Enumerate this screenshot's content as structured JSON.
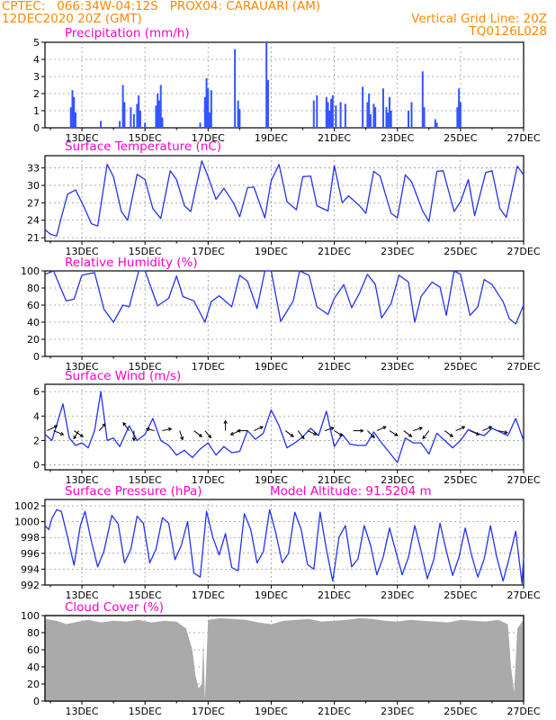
{
  "header": {
    "line1_left": "CPTEC:   066:34W-04:12S   PROX04: CARAUARI (AM)",
    "line2_left": "12DEC2020 20Z (GMT)",
    "line2_right": "Vertical Grid Line: 20Z",
    "line3_right": "TQ0126L028",
    "color": "#ff8800"
  },
  "chart_data": [
    {
      "type": "bar",
      "title": "Precipitation (mm/h)",
      "ylim": [
        0,
        5
      ],
      "yticks": [
        "0",
        "1",
        "2",
        "3",
        "4",
        "5"
      ],
      "x_labels": [
        "13DEC",
        "15DEC",
        "17DEC",
        "19DEC",
        "21DEC",
        "23DEC",
        "25DEC",
        "27DEC"
      ],
      "color": "#3355ff",
      "bars": [
        {
          "x": 12.65,
          "y": 1.2
        },
        {
          "x": 12.7,
          "y": 2.2
        },
        {
          "x": 12.75,
          "y": 1.8
        },
        {
          "x": 12.8,
          "y": 0.9
        },
        {
          "x": 13.6,
          "y": 0.4
        },
        {
          "x": 14.2,
          "y": 0.4
        },
        {
          "x": 14.3,
          "y": 2.5
        },
        {
          "x": 14.35,
          "y": 1.5
        },
        {
          "x": 14.55,
          "y": 1.2
        },
        {
          "x": 14.65,
          "y": 0.8
        },
        {
          "x": 14.75,
          "y": 1.4
        },
        {
          "x": 14.8,
          "y": 1.9
        },
        {
          "x": 14.85,
          "y": 1.0
        },
        {
          "x": 15.0,
          "y": 0.3
        },
        {
          "x": 15.35,
          "y": 1.3
        },
        {
          "x": 15.4,
          "y": 2.0
        },
        {
          "x": 15.45,
          "y": 1.6
        },
        {
          "x": 15.5,
          "y": 2.5
        },
        {
          "x": 15.55,
          "y": 0.6
        },
        {
          "x": 16.75,
          "y": 0.3
        },
        {
          "x": 16.9,
          "y": 1.8
        },
        {
          "x": 16.95,
          "y": 2.9
        },
        {
          "x": 17.0,
          "y": 2.3
        },
        {
          "x": 17.05,
          "y": 0.9
        },
        {
          "x": 17.1,
          "y": 2.2
        },
        {
          "x": 17.85,
          "y": 4.6
        },
        {
          "x": 17.95,
          "y": 1.6
        },
        {
          "x": 18.0,
          "y": 1.1
        },
        {
          "x": 18.85,
          "y": 5.0
        },
        {
          "x": 18.9,
          "y": 2.8
        },
        {
          "x": 20.35,
          "y": 1.6
        },
        {
          "x": 20.45,
          "y": 1.9
        },
        {
          "x": 20.75,
          "y": 1.8
        },
        {
          "x": 20.8,
          "y": 1.5
        },
        {
          "x": 20.85,
          "y": 1.0
        },
        {
          "x": 20.9,
          "y": 1.7
        },
        {
          "x": 20.95,
          "y": 1.9
        },
        {
          "x": 21.05,
          "y": 1.3
        },
        {
          "x": 21.2,
          "y": 1.5
        },
        {
          "x": 21.35,
          "y": 1.4
        },
        {
          "x": 21.9,
          "y": 2.4
        },
        {
          "x": 22.05,
          "y": 1.5
        },
        {
          "x": 22.1,
          "y": 2.0
        },
        {
          "x": 22.15,
          "y": 0.8
        },
        {
          "x": 22.25,
          "y": 1.4
        },
        {
          "x": 22.3,
          "y": 1.2
        },
        {
          "x": 22.55,
          "y": 2.3
        },
        {
          "x": 22.65,
          "y": 1.2
        },
        {
          "x": 22.7,
          "y": 0.9
        },
        {
          "x": 22.75,
          "y": 1.8
        },
        {
          "x": 22.8,
          "y": 1.0
        },
        {
          "x": 23.35,
          "y": 1.0
        },
        {
          "x": 23.45,
          "y": 1.5
        },
        {
          "x": 23.8,
          "y": 3.3
        },
        {
          "x": 23.85,
          "y": 1.2
        },
        {
          "x": 24.2,
          "y": 0.5
        },
        {
          "x": 24.25,
          "y": 0.3
        },
        {
          "x": 24.9,
          "y": 1.2
        },
        {
          "x": 24.95,
          "y": 2.3
        },
        {
          "x": 25.0,
          "y": 1.5
        }
      ]
    },
    {
      "type": "line",
      "title": "Surface Temperature (nC)",
      "ylim": [
        20.4,
        35.1
      ],
      "yticks": [
        "21",
        "24",
        "27",
        "30",
        "33"
      ],
      "x_labels": [
        "13DEC",
        "15DEC",
        "17DEC",
        "19DEC",
        "21DEC",
        "23DEC",
        "25DEC",
        "27DEC"
      ],
      "color": "#2233ee",
      "x": [
        11.83,
        12.0,
        12.2,
        12.35,
        12.55,
        12.8,
        13.05,
        13.3,
        13.5,
        13.8,
        14.0,
        14.25,
        14.45,
        14.75,
        15.0,
        15.25,
        15.5,
        15.8,
        16.0,
        16.25,
        16.45,
        16.8,
        17.0,
        17.25,
        17.5,
        17.8,
        18.0,
        18.25,
        18.45,
        18.8,
        19.0,
        19.25,
        19.5,
        19.8,
        20.0,
        20.25,
        20.45,
        20.8,
        21.0,
        21.25,
        21.45,
        21.8,
        22.0,
        22.25,
        22.45,
        22.8,
        23.0,
        23.25,
        23.45,
        23.8,
        24.0,
        24.25,
        24.45,
        24.8,
        25.0,
        25.25,
        25.45,
        25.8,
        26.0,
        26.25,
        26.45,
        26.8,
        27.0
      ],
      "y": [
        22.4,
        21.6,
        21.3,
        24.5,
        28.5,
        29.2,
        26.5,
        23.4,
        23.0,
        33.6,
        31.5,
        25.5,
        24.0,
        31.9,
        31.0,
        26.0,
        24.3,
        32.5,
        31.0,
        26.5,
        25.5,
        34.2,
        31.5,
        27.6,
        29.5,
        27.0,
        24.6,
        29.6,
        29.7,
        24.4,
        30.8,
        33.6,
        27.2,
        25.8,
        31.5,
        31.6,
        26.5,
        25.6,
        33.4,
        27.0,
        28.2,
        26.5,
        25.2,
        32.4,
        31.6,
        25.2,
        24.4,
        31.8,
        30.6,
        25.6,
        23.8,
        32.4,
        32.5,
        25.5,
        27.2,
        31.0,
        24.8,
        32.2,
        32.5,
        26.0,
        24.5,
        33.3,
        31.8
      ]
    },
    {
      "type": "line",
      "title": "Relative Humidity (%)",
      "ylim": [
        0,
        100
      ],
      "yticks": [
        "0",
        "20",
        "40",
        "60",
        "80",
        "100"
      ],
      "x_labels": [
        "13DEC",
        "15DEC",
        "17DEC",
        "19DEC",
        "21DEC",
        "23DEC",
        "25DEC",
        "27DEC"
      ],
      "color": "#2233ee",
      "x": [
        11.83,
        12.1,
        12.5,
        12.75,
        13.0,
        13.4,
        13.7,
        14.0,
        14.3,
        14.5,
        14.8,
        15.0,
        15.4,
        15.75,
        16.0,
        16.2,
        16.55,
        16.9,
        17.1,
        17.35,
        17.75,
        18.0,
        18.25,
        18.55,
        18.8,
        19.0,
        19.3,
        19.7,
        19.9,
        20.2,
        20.45,
        20.8,
        21.0,
        21.3,
        21.55,
        21.8,
        22.05,
        22.3,
        22.5,
        22.8,
        23.05,
        23.35,
        23.55,
        23.75,
        24.1,
        24.35,
        24.55,
        24.8,
        25.0,
        25.3,
        25.55,
        25.75,
        26.0,
        26.35,
        26.55,
        26.75,
        27.0
      ],
      "y": [
        96,
        100,
        65,
        67,
        95,
        98,
        55,
        40,
        60,
        58,
        100,
        100,
        59,
        68,
        94,
        70,
        65,
        40,
        64,
        71,
        58,
        95,
        88,
        56,
        100,
        100,
        41,
        65,
        100,
        95,
        58,
        49,
        68,
        84,
        57,
        74,
        96,
        84,
        45,
        62,
        95,
        87,
        40,
        70,
        87,
        81,
        48,
        100,
        96,
        48,
        58,
        90,
        84,
        64,
        44,
        38,
        60
      ]
    },
    {
      "type": "line",
      "title": "Surface Wind (m/s)",
      "ylim": [
        -0.4,
        6.6
      ],
      "yticks": [
        "0",
        "2",
        "4",
        "6"
      ],
      "x_labels": [
        "13DEC",
        "15DEC",
        "17DEC",
        "19DEC",
        "21DEC",
        "23DEC",
        "25DEC",
        "27DEC"
      ],
      "color": "#2233ee",
      "x": [
        11.83,
        12.05,
        12.25,
        12.4,
        12.6,
        12.8,
        13.0,
        13.2,
        13.4,
        13.6,
        13.8,
        14.0,
        14.2,
        14.5,
        14.75,
        15.0,
        15.25,
        15.5,
        15.75,
        16.0,
        16.25,
        16.5,
        16.75,
        17.0,
        17.25,
        17.5,
        17.75,
        18.0,
        18.25,
        18.5,
        18.75,
        19.0,
        19.25,
        19.5,
        19.75,
        20.0,
        20.25,
        20.5,
        20.75,
        21.0,
        21.25,
        21.5,
        21.75,
        22.0,
        22.25,
        22.5,
        22.75,
        23.0,
        23.25,
        23.5,
        23.75,
        24.0,
        24.25,
        24.5,
        24.75,
        25.0,
        25.25,
        25.5,
        25.75,
        26.0,
        26.25,
        26.5,
        26.75,
        27.0
      ],
      "y": [
        2.5,
        2.0,
        3.7,
        5.0,
        2.2,
        1.6,
        1.8,
        1.4,
        2.8,
        6.0,
        2.0,
        2.2,
        1.5,
        3.2,
        2.0,
        2.5,
        3.8,
        2.0,
        1.6,
        0.8,
        1.2,
        0.6,
        1.3,
        1.8,
        0.8,
        1.5,
        1.0,
        1.1,
        2.8,
        2.1,
        2.6,
        4.5,
        3.2,
        1.4,
        1.8,
        2.3,
        3.0,
        2.4,
        4.4,
        1.5,
        2.5,
        1.7,
        1.6,
        1.6,
        2.7,
        1.8,
        1.0,
        0.2,
        2.2,
        1.8,
        1.8,
        0.9,
        2.6,
        2.0,
        1.4,
        2.0,
        2.9,
        2.6,
        2.4,
        3.0,
        2.7,
        2.4,
        3.8,
        2.0
      ],
      "arrows": [
        {
          "x": 11.9,
          "u": 1.0,
          "v": 0.5
        },
        {
          "x": 12.1,
          "u": 1.0,
          "v": -0.4
        },
        {
          "x": 12.75,
          "u": 0.9,
          "v": -0.6
        },
        {
          "x": 12.9,
          "u": -0.5,
          "v": -0.8
        },
        {
          "x": 13.55,
          "u": 0.6,
          "v": 0.7
        },
        {
          "x": 14.5,
          "u": -0.6,
          "v": 0.8
        },
        {
          "x": 14.65,
          "u": 0.0,
          "v": -1.0
        },
        {
          "x": 15.3,
          "u": -0.8,
          "v": 0.2
        },
        {
          "x": 15.55,
          "u": 0.9,
          "v": 0.2
        },
        {
          "x": 16.1,
          "u": 0.3,
          "v": -0.9
        },
        {
          "x": 16.55,
          "u": 0.8,
          "v": -0.6
        },
        {
          "x": 16.9,
          "u": 0.6,
          "v": -0.7
        },
        {
          "x": 17.55,
          "u": 0.0,
          "v": 1.0
        },
        {
          "x": 18.0,
          "u": -0.9,
          "v": -0.4
        },
        {
          "x": 18.25,
          "u": -1.0,
          "v": 0.0
        },
        {
          "x": 18.45,
          "u": 0.9,
          "v": 0.4
        },
        {
          "x": 19.45,
          "u": 0.8,
          "v": -0.6
        },
        {
          "x": 19.85,
          "u": 0.6,
          "v": -0.8
        },
        {
          "x": 20.15,
          "u": 0.9,
          "v": -0.4
        },
        {
          "x": 20.7,
          "u": 0.9,
          "v": 0.3
        },
        {
          "x": 21.0,
          "u": 0.8,
          "v": -0.5
        },
        {
          "x": 21.6,
          "u": 1.0,
          "v": 0.0
        },
        {
          "x": 22.05,
          "u": 0.7,
          "v": -0.7
        },
        {
          "x": 22.35,
          "u": 0.9,
          "v": 0.4
        },
        {
          "x": 22.75,
          "u": 0.8,
          "v": -0.5
        },
        {
          "x": 23.2,
          "u": 0.8,
          "v": -0.6
        },
        {
          "x": 23.5,
          "u": 0.9,
          "v": 0.3
        },
        {
          "x": 24.0,
          "u": -0.6,
          "v": -0.8
        },
        {
          "x": 24.5,
          "u": 0.8,
          "v": -0.6
        },
        {
          "x": 24.85,
          "u": 0.9,
          "v": 0.4
        },
        {
          "x": 25.3,
          "u": 0.9,
          "v": -0.4
        },
        {
          "x": 25.7,
          "u": 0.9,
          "v": 0.4
        },
        {
          "x": 26.2,
          "u": 0.9,
          "v": -0.2
        }
      ]
    },
    {
      "type": "line",
      "title": "Surface Pressure (hPa)",
      "subtitle": "Model Altitude: 91.5204 m",
      "ylim": [
        992,
        1002.8
      ],
      "yticks": [
        "992",
        "994",
        "996",
        "998",
        "1000",
        "1002"
      ],
      "x_labels": [
        "13DEC",
        "15DEC",
        "17DEC",
        "19DEC",
        "21DEC",
        "23DEC",
        "25DEC",
        "27DEC"
      ],
      "color": "#2233ee",
      "x": [
        11.83,
        11.95,
        12.05,
        12.2,
        12.35,
        12.55,
        12.75,
        12.95,
        13.1,
        13.3,
        13.5,
        13.7,
        13.95,
        14.15,
        14.35,
        14.55,
        14.75,
        14.95,
        15.15,
        15.35,
        15.55,
        15.75,
        15.95,
        16.15,
        16.35,
        16.55,
        16.75,
        16.95,
        17.15,
        17.35,
        17.55,
        17.75,
        17.95,
        18.15,
        18.35,
        18.55,
        18.75,
        18.95,
        19.15,
        19.35,
        19.55,
        19.75,
        19.95,
        20.15,
        20.35,
        20.55,
        20.75,
        20.95,
        21.15,
        21.35,
        21.55,
        21.75,
        21.95,
        22.15,
        22.35,
        22.55,
        22.75,
        22.95,
        23.15,
        23.35,
        23.55,
        23.75,
        23.95,
        24.15,
        24.35,
        24.55,
        24.75,
        24.95,
        25.15,
        25.35,
        25.55,
        25.75,
        25.95,
        26.15,
        26.35,
        26.55,
        26.75,
        26.95,
        27.0
      ],
      "y": [
        999.5,
        999.0,
        1000.4,
        1001.5,
        1001.3,
        998.0,
        994.5,
        999.5,
        1001.3,
        997.5,
        994.3,
        996.3,
        1000.8,
        999.7,
        994.8,
        996.5,
        1000.7,
        999.8,
        994.8,
        996.5,
        1000.5,
        999.8,
        995.2,
        997.0,
        1000.0,
        993.5,
        993.0,
        1001.3,
        998.0,
        995.8,
        998.5,
        994.2,
        993.8,
        1001.0,
        999.0,
        994.8,
        996.2,
        1001.5,
        998.5,
        994.8,
        996.0,
        1001.2,
        999.0,
        994.6,
        994.0,
        1001.2,
        996.5,
        992.5,
        998.0,
        999.5,
        994.3,
        995.3,
        999.5,
        997.0,
        993.3,
        995.5,
        999.2,
        996.2,
        993.3,
        995.5,
        999.5,
        996.3,
        992.8,
        995.2,
        999.8,
        996.3,
        993.2,
        995.5,
        999.2,
        995.8,
        993.0,
        995.3,
        999.5,
        995.5,
        992.5,
        995.5,
        998.8,
        992.2,
        995.5
      ]
    },
    {
      "type": "area",
      "title": "Cloud Cover (%)",
      "ylim": [
        0,
        100
      ],
      "yticks": [
        "0",
        "20",
        "40",
        "60",
        "80",
        "100"
      ],
      "x_labels": [
        "13DEC",
        "15DEC",
        "17DEC",
        "19DEC",
        "21DEC",
        "23DEC",
        "25DEC",
        "27DEC"
      ],
      "color": "#aaaaaa",
      "x": [
        11.83,
        12.2,
        12.5,
        12.9,
        13.2,
        13.6,
        14.0,
        14.4,
        14.8,
        15.2,
        15.6,
        16.0,
        16.3,
        16.5,
        16.6,
        16.7,
        16.8,
        16.85,
        16.9,
        17.0,
        17.4,
        17.8,
        18.2,
        18.6,
        19.0,
        19.4,
        19.8,
        20.2,
        20.6,
        21.0,
        21.4,
        21.8,
        22.2,
        22.6,
        23.0,
        23.4,
        23.8,
        24.2,
        24.6,
        25.0,
        25.4,
        25.8,
        26.2,
        26.5,
        26.6,
        26.7,
        26.8,
        27.0
      ],
      "y": [
        96,
        94,
        90,
        93,
        95,
        92,
        94,
        93,
        95,
        92,
        94,
        93,
        85,
        60,
        30,
        15,
        20,
        70,
        2,
        95,
        97,
        96,
        95,
        92,
        90,
        94,
        95,
        96,
        93,
        94,
        95,
        97,
        96,
        94,
        93,
        95,
        94,
        93,
        92,
        95,
        94,
        93,
        95,
        90,
        40,
        10,
        85,
        95
      ]
    }
  ]
}
